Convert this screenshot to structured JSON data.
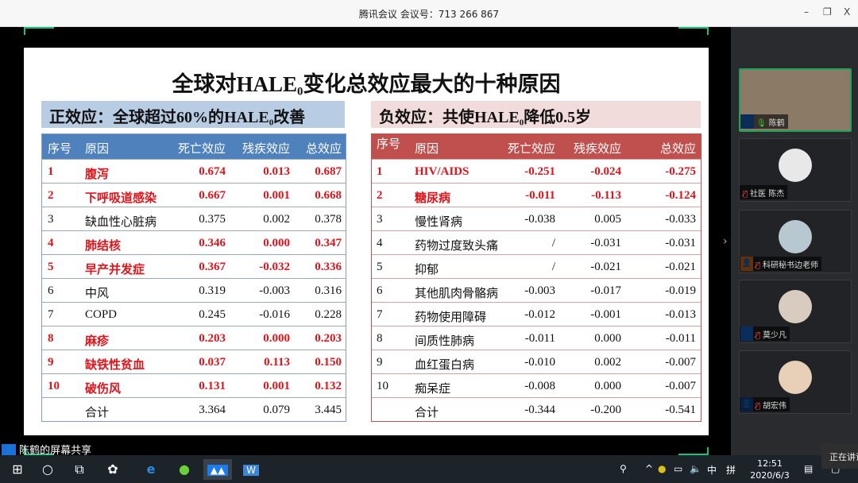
{
  "window": {
    "title": "腾讯会议 会议号：713 266 867",
    "minimize": "–",
    "restore": "❐",
    "close": "X"
  },
  "slide": {
    "title_pre": "全球对HALE",
    "title_sub": "0",
    "title_post": "变化总效应最大的十种原因",
    "left": {
      "subtitle_pre": "正效应：全球超过60%的HALE",
      "subtitle_sub": "0",
      "subtitle_post": "改善",
      "header_color": "#4f81bd",
      "subtitle_bg": "#b8cce4",
      "columns": [
        "序号",
        "原因",
        "死亡效应",
        "残疾效应",
        "总效应"
      ],
      "rows": [
        {
          "no": "1",
          "cause": "腹泻",
          "death": "0.674",
          "disab": "0.013",
          "total": "0.687",
          "highlight": true
        },
        {
          "no": "2",
          "cause": "下呼吸道感染",
          "death": "0.667",
          "disab": "0.001",
          "total": "0.668",
          "highlight": true
        },
        {
          "no": "3",
          "cause": "缺血性心脏病",
          "death": "0.375",
          "disab": "0.002",
          "total": "0.378",
          "highlight": false
        },
        {
          "no": "4",
          "cause": "肺结核",
          "death": "0.346",
          "disab": "0.000",
          "total": "0.347",
          "highlight": true
        },
        {
          "no": "5",
          "cause": "早产并发症",
          "death": "0.367",
          "disab": "-0.032",
          "total": "0.336",
          "highlight": true
        },
        {
          "no": "6",
          "cause": "中风",
          "death": "0.319",
          "disab": "-0.003",
          "total": "0.316",
          "highlight": false
        },
        {
          "no": "7",
          "cause": "COPD",
          "death": "0.245",
          "disab": "-0.016",
          "total": "0.228",
          "highlight": false
        },
        {
          "no": "8",
          "cause": "麻疹",
          "death": "0.203",
          "disab": "0.000",
          "total": "0.203",
          "highlight": true
        },
        {
          "no": "9",
          "cause": "缺铁性贫血",
          "death": "0.037",
          "disab": "0.113",
          "total": "0.150",
          "highlight": true
        },
        {
          "no": "10",
          "cause": "破伤风",
          "death": "0.131",
          "disab": "0.001",
          "total": "0.132",
          "highlight": true
        },
        {
          "no": "",
          "cause": "合计",
          "death": "3.364",
          "disab": "0.079",
          "total": "3.445",
          "highlight": false
        }
      ]
    },
    "right": {
      "subtitle_pre": "负效应：共使HALE",
      "subtitle_sub": "0",
      "subtitle_post": "降低0.5岁",
      "header_color": "#c0504d",
      "subtitle_bg": "#f2dcdb",
      "columns": [
        "序号",
        "原因",
        "死亡效应",
        "残疾效应",
        "总效应"
      ],
      "rows": [
        {
          "no": "1",
          "cause": "HIV/AIDS",
          "death": "-0.251",
          "disab": "-0.024",
          "total": "-0.275",
          "highlight": true
        },
        {
          "no": "2",
          "cause": "糖尿病",
          "death": "-0.011",
          "disab": "-0.113",
          "total": "-0.124",
          "highlight": true
        },
        {
          "no": "3",
          "cause": "慢性肾病",
          "death": "-0.038",
          "disab": "0.005",
          "total": "-0.033",
          "highlight": false
        },
        {
          "no": "4",
          "cause": "药物过度致头痛",
          "death": "/",
          "disab": "-0.031",
          "total": "-0.031",
          "highlight": false
        },
        {
          "no": "5",
          "cause": "抑郁",
          "death": "/",
          "disab": "-0.021",
          "total": "-0.021",
          "highlight": false
        },
        {
          "no": "6",
          "cause": "其他肌肉骨骼病",
          "death": "-0.003",
          "disab": "-0.017",
          "total": "-0.019",
          "highlight": false
        },
        {
          "no": "7",
          "cause": "药物使用障碍",
          "death": "-0.012",
          "disab": "-0.001",
          "total": "-0.013",
          "highlight": false
        },
        {
          "no": "8",
          "cause": "间质性肺病",
          "death": "-0.011",
          "disab": "0.000",
          "total": "-0.011",
          "highlight": false
        },
        {
          "no": "9",
          "cause": "血红蛋白病",
          "death": "-0.010",
          "disab": "0.002",
          "total": "-0.007",
          "highlight": false
        },
        {
          "no": "10",
          "cause": "痴呆症",
          "death": "-0.008",
          "disab": "0.000",
          "total": "-0.007",
          "highlight": false
        },
        {
          "no": "",
          "cause": "合计",
          "death": "-0.344",
          "disab": "-0.200",
          "total": "-0.541",
          "highlight": false
        }
      ]
    }
  },
  "participants": [
    {
      "name": "陈鹤",
      "muted": false,
      "sharing": true,
      "icon_color": "#1a6fe0"
    },
    {
      "name": "社医 陈杰",
      "muted": true
    },
    {
      "name": "科研秘书边老师",
      "muted": true,
      "icon_color": "#f07a1a"
    },
    {
      "name": "莫少凡",
      "muted": true,
      "icon_color": "#1a6fe0"
    },
    {
      "name": "胡宏伟",
      "muted": true,
      "icon_color": "#1a4f9e"
    }
  ],
  "share_label": "陈鹤的屏幕共享",
  "tooltip": "正在讲话",
  "taskbar": {
    "time": "12:51",
    "date": "2020/6/3",
    "ime": "中",
    "ime2": "拼"
  }
}
